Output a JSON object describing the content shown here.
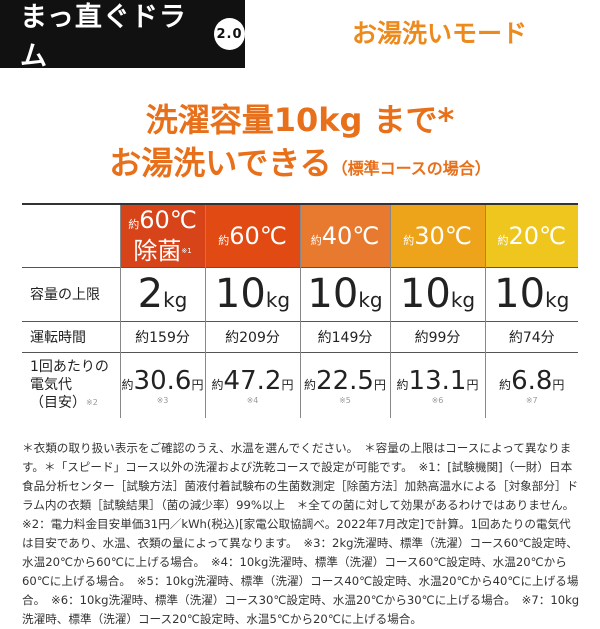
{
  "header": {
    "logo": "まっ直ぐドラム",
    "logo_version": "2.0",
    "mode": "お湯洗いモード"
  },
  "headline": {
    "line1": "洗濯容量10kg まで*",
    "line2": "お湯洗いできる",
    "line2_note": "（標準コースの場合）"
  },
  "colors": {
    "col1": "#d8441a",
    "col2": "#e14a12",
    "col3": "#e87a30",
    "col4": "#eea41a",
    "col5": "#efc61e"
  },
  "table": {
    "columns": [
      {
        "prefix": "約",
        "temp": "60℃",
        "sub": "除菌",
        "sub_note": "※1"
      },
      {
        "prefix": "約",
        "temp": "60℃"
      },
      {
        "prefix": "約",
        "temp": "40℃"
      },
      {
        "prefix": "約",
        "temp": "30℃"
      },
      {
        "prefix": "約",
        "temp": "20℃"
      }
    ],
    "rows": {
      "capacity": {
        "label": "容量の上限",
        "values": [
          "2",
          "10",
          "10",
          "10",
          "10"
        ],
        "unit": "kg"
      },
      "time": {
        "label": "運転時間",
        "values": [
          "約159分",
          "約209分",
          "約149分",
          "約99分",
          "約74分"
        ]
      },
      "cost": {
        "label1": "1回あたりの",
        "label2": "電気代",
        "label3": "（目安）",
        "label_note": "※2",
        "prefix": "約",
        "unit": "円",
        "values": [
          "30.6",
          "47.2",
          "22.5",
          "13.1",
          "6.8"
        ],
        "notes": [
          "※3",
          "※4",
          "※5",
          "※6",
          "※7"
        ]
      }
    }
  },
  "footnotes": "＊衣類の取り扱い表示をご確認のうえ、水温を選んでください。　＊容量の上限はコースによって異なります。＊「スピード」コース以外の洗濯および洗乾コースで設定が可能です。　※1：[試験機関]（一財）日本食品分析センター［試験方法］菌液付着試験布の生菌数測定［除菌方法］加熱高温水による［対象部分］ドラム内の衣類［試験結果］（菌の減少率）99%以上　＊全ての菌に対して効果があるわけではありません。　※2：電力料金目安単価31円／kWh(税込)[家電公取協調べ。2022年7月改定]で計算。1回あたりの電気代は目安であり、水温、衣類の量によって異なります。　※3：2kg洗濯時、標準（洗濯）コース60℃設定時、水温20℃から60℃に上げる場合。　※4：10kg洗濯時、標準（洗濯）コース60℃設定時、水温20℃から60℃に上げる場合。　※5：10kg洗濯時、標準（洗濯）コース40℃設定時、水温20℃から40℃に上げる場合。　※6：10kg洗濯時、標準（洗濯）コース30℃設定時、水温20℃から30℃に上げる場合。　※7：10kg洗濯時、標準（洗濯）コース20℃設定時、水温5℃から20℃に上げる場合。"
}
